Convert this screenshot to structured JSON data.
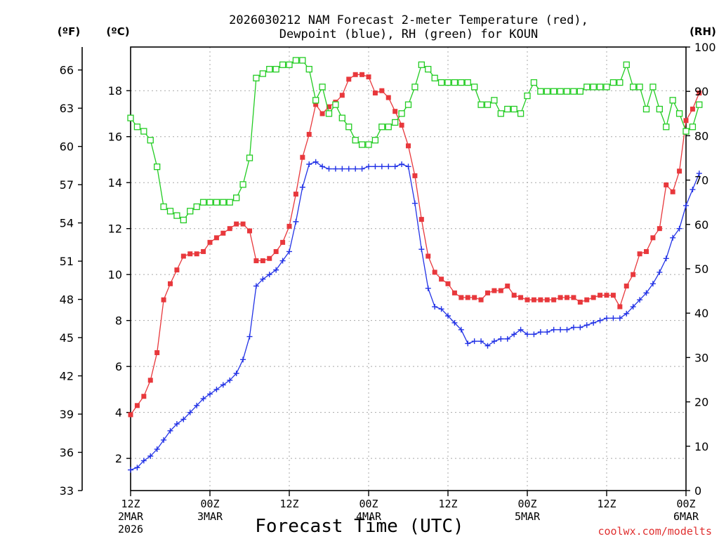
{
  "chart_data": {
    "type": "line",
    "title_lines": [
      "2026030212 NAM Forecast 2-meter Temperature (red),",
      "Dewpoint (blue), RH (green) for KOUN"
    ],
    "xlabel": "Forecast Time (UTC)",
    "credit": "coolwx.com/modelts",
    "units": {
      "fahrenheit": "(ºF)",
      "celsius": "(ºC)",
      "rh": "(RH)"
    },
    "x_range_hours": [
      0,
      84
    ],
    "x_ticks": [
      {
        "hour": 0,
        "lines": [
          "12Z",
          "2MAR",
          "2026"
        ]
      },
      {
        "hour": 12,
        "lines": [
          "00Z",
          "3MAR"
        ]
      },
      {
        "hour": 24,
        "lines": [
          "12Z"
        ]
      },
      {
        "hour": 36,
        "lines": [
          "00Z",
          "4MAR"
        ]
      },
      {
        "hour": 48,
        "lines": [
          "12Z"
        ]
      },
      {
        "hour": 60,
        "lines": [
          "00Z",
          "5MAR"
        ]
      },
      {
        "hour": 72,
        "lines": [
          "12Z"
        ]
      },
      {
        "hour": 84,
        "lines": [
          "00Z",
          "6MAR"
        ]
      }
    ],
    "celsius_axis": {
      "min": 0.6,
      "max": 19.9,
      "ticks": [
        2,
        4,
        6,
        8,
        10,
        12,
        14,
        16,
        18
      ]
    },
    "fahrenheit_axis": {
      "min": 33,
      "max": 67.8,
      "ticks": [
        33,
        36,
        39,
        42,
        45,
        48,
        51,
        54,
        57,
        60,
        63,
        66
      ]
    },
    "rh_axis": {
      "min": 0,
      "max": 100,
      "ticks": [
        0,
        10,
        20,
        30,
        40,
        50,
        60,
        70,
        80,
        90,
        100
      ]
    },
    "series": [
      {
        "name": "Temperature",
        "units": "C",
        "color": "#e8383c",
        "marker": "filled-square",
        "values": [
          3.9,
          4.3,
          4.7,
          5.4,
          6.6,
          8.9,
          9.6,
          10.2,
          10.8,
          10.9,
          10.9,
          11.0,
          11.4,
          11.6,
          11.8,
          12.0,
          12.2,
          12.2,
          11.9,
          10.6,
          10.6,
          10.7,
          11.0,
          11.4,
          12.1,
          13.5,
          15.1,
          16.1,
          17.4,
          17.0,
          17.3,
          17.5,
          17.8,
          18.5,
          18.7,
          18.7,
          18.6,
          17.9,
          18.0,
          17.7,
          17.1,
          16.5,
          15.6,
          14.3,
          12.4,
          10.8,
          10.1,
          9.8,
          9.6,
          9.2,
          9.0,
          9.0,
          9.0,
          8.9,
          9.2,
          9.3,
          9.3,
          9.5,
          9.1,
          9.0,
          8.9,
          8.9,
          8.9,
          8.9,
          8.9,
          9.0,
          9.0,
          9.0,
          8.8,
          8.9,
          9.0,
          9.1,
          9.1,
          9.1,
          8.6,
          9.5,
          10.0,
          10.9,
          11.0,
          11.6,
          12.0,
          13.9,
          13.6,
          14.5,
          16.7,
          17.2,
          17.9
        ]
      },
      {
        "name": "Dewpoint",
        "units": "C",
        "color": "#2232e6",
        "marker": "plus",
        "values": [
          1.5,
          1.6,
          1.9,
          2.1,
          2.4,
          2.8,
          3.2,
          3.5,
          3.7,
          4.0,
          4.3,
          4.6,
          4.8,
          5.0,
          5.2,
          5.4,
          5.7,
          6.3,
          7.3,
          9.5,
          9.8,
          10.0,
          10.2,
          10.6,
          11.0,
          12.3,
          13.8,
          14.8,
          14.9,
          14.7,
          14.6,
          14.6,
          14.6,
          14.6,
          14.6,
          14.6,
          14.7,
          14.7,
          14.7,
          14.7,
          14.7,
          14.8,
          14.7,
          13.1,
          11.1,
          9.4,
          8.6,
          8.5,
          8.2,
          7.9,
          7.6,
          7.0,
          7.1,
          7.1,
          6.9,
          7.1,
          7.2,
          7.2,
          7.4,
          7.6,
          7.4,
          7.4,
          7.5,
          7.5,
          7.6,
          7.6,
          7.6,
          7.7,
          7.7,
          7.8,
          7.9,
          8.0,
          8.1,
          8.1,
          8.1,
          8.3,
          8.6,
          8.9,
          9.2,
          9.6,
          10.1,
          10.7,
          11.6,
          12.0,
          13.0,
          13.7,
          14.4
        ]
      },
      {
        "name": "RH",
        "units": "%",
        "color": "#22cc22",
        "marker": "open-square",
        "values": [
          84,
          82,
          81,
          79,
          73,
          64,
          63,
          62,
          61,
          63,
          64,
          65,
          65,
          65,
          65,
          65,
          66,
          69,
          75,
          93,
          94,
          95,
          95,
          96,
          96,
          97,
          97,
          95,
          88,
          91,
          85,
          87,
          84,
          82,
          79,
          78,
          78,
          79,
          82,
          82,
          83,
          85,
          87,
          91,
          96,
          95,
          93,
          92,
          92,
          92,
          92,
          92,
          91,
          87,
          87,
          88,
          85,
          86,
          86,
          85,
          89,
          92,
          90,
          90,
          90,
          90,
          90,
          90,
          90,
          91,
          91,
          91,
          91,
          92,
          92,
          96,
          91,
          91,
          86,
          91,
          86,
          82,
          88,
          85,
          81,
          82,
          87
        ]
      }
    ]
  }
}
